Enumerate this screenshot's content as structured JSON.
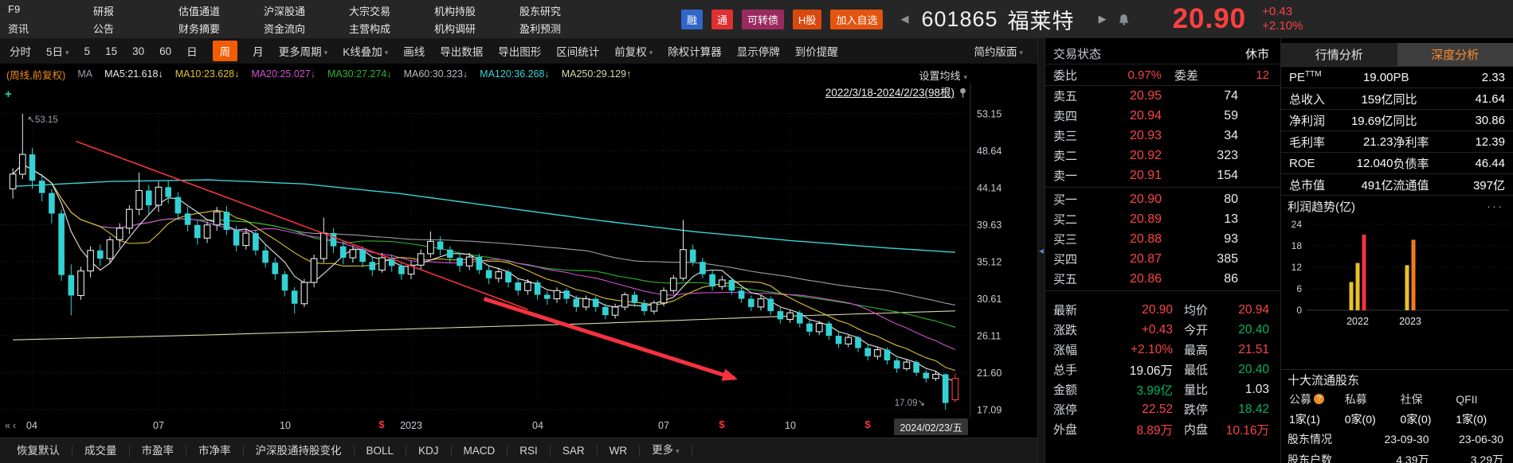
{
  "titlebar": {
    "menu_rows": [
      [
        "F9",
        "研报",
        "估值通道",
        "沪深股通",
        "大宗交易",
        "机构持股",
        "股东研究"
      ],
      [
        "资讯",
        "公告",
        "财务摘要",
        "资金流向",
        "主营构成",
        "机构调研",
        "盈利预测"
      ]
    ],
    "badges": [
      {
        "label": "融",
        "name": "margin-badge",
        "bg": "#2f66c9"
      },
      {
        "label": "通",
        "name": "connect-badge",
        "bg": "#df2f2f"
      },
      {
        "label": "可转债",
        "name": "convertible-bond-badge",
        "bg": "#992a60"
      },
      {
        "label": "H股",
        "name": "h-share-badge",
        "bg": "#d9490f"
      },
      {
        "label": "加入自选",
        "name": "add-watchlist-button",
        "bg": "#e2540f"
      }
    ],
    "collapse_arrow": "◀",
    "code": "601865",
    "name": "福莱特",
    "expand_arrow": "▶",
    "price": "20.90",
    "change": "+0.43",
    "change_pct": "+2.10%"
  },
  "toolbar": {
    "items": [
      {
        "label": "分时"
      },
      {
        "label": "5日",
        "caret": true
      },
      {
        "label": "5"
      },
      {
        "label": "15"
      },
      {
        "label": "30"
      },
      {
        "label": "60"
      },
      {
        "label": "日"
      },
      {
        "label": "周",
        "active": true
      },
      {
        "label": "月"
      },
      {
        "label": "更多周期",
        "caret": true
      },
      {
        "label": "K线叠加",
        "caret": true
      },
      {
        "label": "画线"
      },
      {
        "label": "导出数据"
      },
      {
        "label": "导出图形"
      },
      {
        "label": "区间统计"
      },
      {
        "label": "前复权",
        "caret": true
      },
      {
        "label": "除权计算器"
      },
      {
        "label": "显示停牌"
      },
      {
        "label": "到价提醒"
      }
    ],
    "right_item": "简约版面"
  },
  "ma_row": {
    "prefix": "(周线,前复权)",
    "label": "MA",
    "items": [
      {
        "t": "MA5:21.618",
        "d": "↓",
        "c": "#e8e8e8"
      },
      {
        "t": "MA10:23.628",
        "d": "↓",
        "c": "#e0c12f"
      },
      {
        "t": "MA20:25.027",
        "d": "↓",
        "c": "#d34fd3"
      },
      {
        "t": "MA30:27.274",
        "d": "↓",
        "c": "#2eb52e"
      },
      {
        "t": "MA60:30.323",
        "d": "↓",
        "c": "#b8bcc0"
      },
      {
        "t": "MA120:36.268",
        "d": "↓",
        "c": "#38d4d6"
      },
      {
        "t": "MA250:29.129",
        "d": "↑",
        "c": "#d9d9a8"
      }
    ]
  },
  "chart_header": {
    "settings": "设置均线",
    "range": "2022/3/18-2024/2/23(98根)"
  },
  "xaxis": {
    "arrows": "«‹",
    "end_label": "2024/02/23/五"
  },
  "bottom_bar": {
    "items": [
      "恢复默认",
      "成交量",
      "市盈率",
      "市净率",
      "沪深股通持股变化",
      "BOLL",
      "KDJ",
      "MACD",
      "RSI",
      "SAR",
      "WR"
    ],
    "more": "更多"
  },
  "chart_data": [
    {
      "type": "candlestick",
      "period": "weekly",
      "range_label": "2022/3/18-2024/2/23(98根)",
      "yticks": [
        53.15,
        48.64,
        44.14,
        39.63,
        35.12,
        30.61,
        26.11,
        21.6,
        17.09
      ],
      "ylim": [
        17.09,
        53.15
      ],
      "xticks": [
        {
          "label": "04",
          "week": 2
        },
        {
          "label": "07",
          "week": 15
        },
        {
          "label": "10",
          "week": 28
        },
        {
          "label": "2023",
          "week": 41
        },
        {
          "label": "04",
          "week": 54
        },
        {
          "label": "07",
          "week": 67
        },
        {
          "label": "10",
          "week": 80
        }
      ],
      "dollar_weeks": [
        38,
        73,
        88
      ],
      "annotations": {
        "high": {
          "week": 1,
          "text": "53.15"
        },
        "low": {
          "week": 96,
          "text": "17.09"
        },
        "plus": "+"
      },
      "up_color": "#e6e9ec",
      "down_color": "#33d1d4",
      "last_color": "#fb4143",
      "ma_computed": [
        {
          "n": 60,
          "c": "#9aa0a6"
        },
        {
          "n": 30,
          "c": "#2eb52e"
        },
        {
          "n": 20,
          "c": "#d34fd3"
        },
        {
          "n": 10,
          "c": "#e0c12f"
        },
        {
          "n": 5,
          "c": "#e8e8e8"
        }
      ],
      "ma_overlays": {
        "ma120": {
          "color": "#38d4d6",
          "points": [
            [
              0,
              44.3
            ],
            [
              10,
              44.9
            ],
            [
              20,
              45.1
            ],
            [
              30,
              44.6
            ],
            [
              40,
              43.4
            ],
            [
              50,
              41.8
            ],
            [
              60,
              40.2
            ],
            [
              70,
              38.8
            ],
            [
              80,
              37.7
            ],
            [
              90,
              36.8
            ],
            [
              97,
              36.27
            ]
          ]
        },
        "ma250": {
          "color": "#d9d9a8",
          "points": [
            [
              0,
              25.6
            ],
            [
              20,
              26.2
            ],
            [
              40,
              26.9
            ],
            [
              60,
              27.6
            ],
            [
              80,
              28.5
            ],
            [
              97,
              29.13
            ]
          ]
        }
      },
      "trendline": {
        "color": "#f5333f",
        "line": [
          [
            6.5,
            49.8
          ],
          [
            53,
            29.3
          ]
        ],
        "arrow": [
          [
            48.5,
            30.6
          ],
          [
            74.3,
            20.9
          ]
        ]
      },
      "candles": [
        [
          44,
          46.5,
          42.8,
          45.8
        ],
        [
          45.8,
          53.15,
          45.2,
          48.2
        ],
        [
          48.2,
          49,
          44,
          45
        ],
        [
          45,
          45.8,
          42.5,
          43.5
        ],
        [
          43.5,
          44,
          39.8,
          41
        ],
        [
          41,
          41.5,
          32.8,
          33.5
        ],
        [
          33.5,
          34.8,
          28.6,
          31
        ],
        [
          31,
          34.5,
          30.5,
          34
        ],
        [
          34,
          37,
          33.2,
          36.5
        ],
        [
          36.5,
          37.2,
          34.6,
          35.5
        ],
        [
          35.5,
          38.2,
          35,
          37.8
        ],
        [
          37.8,
          39.8,
          36.8,
          39.2
        ],
        [
          39.2,
          42,
          38.5,
          41.5
        ],
        [
          41.5,
          46,
          40.8,
          43.8
        ],
        [
          43.8,
          44.5,
          40.9,
          42
        ],
        [
          42,
          44.9,
          41.2,
          44.2
        ],
        [
          44.2,
          45,
          42.2,
          43
        ],
        [
          43,
          43.6,
          40.2,
          41
        ],
        [
          41,
          41.8,
          38.8,
          39.6
        ],
        [
          39.6,
          40.2,
          37.2,
          38
        ],
        [
          38,
          40,
          37.4,
          39.6
        ],
        [
          39.6,
          41.8,
          38.9,
          41.2
        ],
        [
          41.2,
          41.9,
          38.4,
          39
        ],
        [
          39,
          39.5,
          36.4,
          37.1
        ],
        [
          37.1,
          39.2,
          36.6,
          38.6
        ],
        [
          38.6,
          39,
          35.9,
          36.5
        ],
        [
          36.5,
          37.2,
          34.4,
          35
        ],
        [
          35,
          35.6,
          32.9,
          33.6
        ],
        [
          33.6,
          34,
          30.9,
          31.6
        ],
        [
          31.6,
          32,
          28.8,
          30
        ],
        [
          30,
          33,
          29.6,
          32.6
        ],
        [
          32.6,
          36,
          32,
          35.5
        ],
        [
          35.5,
          40.5,
          35,
          38.6
        ],
        [
          38.6,
          39.2,
          36.2,
          37
        ],
        [
          37,
          37.6,
          34.8,
          35.6
        ],
        [
          35.6,
          37.1,
          35,
          36.6
        ],
        [
          36.6,
          37,
          34.4,
          35.1
        ],
        [
          35.1,
          35.8,
          33.4,
          34.1
        ],
        [
          34.1,
          36.2,
          33.8,
          35.6
        ],
        [
          35.6,
          36,
          33.9,
          34.6
        ],
        [
          34.6,
          35,
          32.9,
          33.6
        ],
        [
          33.6,
          35.2,
          33,
          34.7
        ],
        [
          34.7,
          36.6,
          34.2,
          36.1
        ],
        [
          36.1,
          38.8,
          35.6,
          37.6
        ],
        [
          37.6,
          38.2,
          35.9,
          36.6
        ],
        [
          36.6,
          37,
          35,
          35.6
        ],
        [
          35.6,
          36.1,
          33.9,
          34.6
        ],
        [
          34.6,
          36.2,
          34.1,
          35.7
        ],
        [
          35.7,
          36.1,
          33.6,
          34.1
        ],
        [
          34.1,
          34.6,
          32.4,
          33.1
        ],
        [
          33.1,
          34.4,
          32.6,
          33.9
        ],
        [
          33.9,
          34.2,
          32,
          32.6
        ],
        [
          32.6,
          33,
          31,
          31.6
        ],
        [
          31.6,
          33,
          31.1,
          32.6
        ],
        [
          32.6,
          32.9,
          30.5,
          31.1
        ],
        [
          31.1,
          31.5,
          29.9,
          30.6
        ],
        [
          30.6,
          32,
          30.1,
          31.6
        ],
        [
          31.6,
          31.9,
          30,
          30.6
        ],
        [
          30.6,
          31,
          29,
          29.6
        ],
        [
          29.6,
          31,
          29.2,
          30.6
        ],
        [
          30.6,
          30.9,
          29,
          29.6
        ],
        [
          29.6,
          30,
          28.1,
          28.6
        ],
        [
          28.6,
          30,
          28.2,
          29.6
        ],
        [
          29.6,
          31.4,
          29.2,
          31.1
        ],
        [
          31.1,
          31.5,
          29.6,
          30.1
        ],
        [
          30.1,
          30.5,
          28.6,
          29.1
        ],
        [
          29.1,
          30.4,
          28.7,
          30.1
        ],
        [
          30.1,
          32,
          29.7,
          31.6
        ],
        [
          31.6,
          33.5,
          31.2,
          33.1
        ],
        [
          33.1,
          40.2,
          32.8,
          36.6
        ],
        [
          36.6,
          37.2,
          34.6,
          35.1
        ],
        [
          35.1,
          35.6,
          33.1,
          33.6
        ],
        [
          33.6,
          34.1,
          31.6,
          32.1
        ],
        [
          32.1,
          33.4,
          31.7,
          32.9
        ],
        [
          32.9,
          33.2,
          31.1,
          31.6
        ],
        [
          31.6,
          32,
          30.1,
          30.6
        ],
        [
          30.6,
          31,
          29.1,
          29.6
        ],
        [
          29.6,
          31,
          29.2,
          30.6
        ],
        [
          30.6,
          30.9,
          28.6,
          29.1
        ],
        [
          29.1,
          29.5,
          27.6,
          28.1
        ],
        [
          28.1,
          29.2,
          27.7,
          28.9
        ],
        [
          28.9,
          29.2,
          27.1,
          27.6
        ],
        [
          27.6,
          28,
          26.1,
          26.6
        ],
        [
          26.6,
          27.9,
          26.2,
          27.6
        ],
        [
          27.6,
          27.9,
          25.6,
          26.1
        ],
        [
          26.1,
          26.5,
          24.6,
          25.1
        ],
        [
          25.1,
          26.2,
          24.7,
          25.9
        ],
        [
          25.9,
          26.1,
          24.1,
          24.6
        ],
        [
          24.6,
          25,
          23.1,
          23.6
        ],
        [
          23.6,
          24.7,
          23.2,
          24.4
        ],
        [
          24.4,
          24.7,
          22.6,
          23.1
        ],
        [
          23.1,
          23.4,
          21.6,
          22.1
        ],
        [
          22.1,
          23.2,
          21.8,
          22.9
        ],
        [
          22.9,
          23.1,
          21.2,
          21.6
        ],
        [
          21.6,
          21.9,
          20.4,
          20.9
        ],
        [
          20.9,
          21.8,
          20.6,
          21.4
        ],
        [
          21.4,
          21.5,
          17.09,
          17.9
        ],
        [
          18.3,
          21.51,
          18,
          20.9
        ]
      ]
    },
    {
      "type": "bar",
      "title": "利润趋势(亿)",
      "yticks": [
        24,
        18,
        12,
        6,
        0
      ],
      "ylim": [
        0,
        26
      ],
      "categories": [
        "2022",
        "2023"
      ],
      "groups": [
        {
          "label": "2022",
          "bars": [
            {
              "value": 7.9,
              "color": "#e6c22d"
            },
            {
              "value": 13.2,
              "color": "#e6c22d"
            },
            {
              "value": 21.1,
              "color": "#f5333f"
            }
          ]
        },
        {
          "label": "2023",
          "bars": [
            {
              "value": 12.6,
              "color": "#e6c22d"
            },
            {
              "value": 19.7,
              "color": "#f07a1e"
            }
          ]
        }
      ]
    }
  ],
  "quote": {
    "header": {
      "label": "交易状态",
      "value": "休市"
    },
    "weibi": {
      "label": "委比",
      "value": "0.97%",
      "label2": "委差",
      "value2": "12"
    },
    "sells": [
      [
        "卖五",
        "20.95",
        "74"
      ],
      [
        "卖四",
        "20.94",
        "59"
      ],
      [
        "卖三",
        "20.93",
        "34"
      ],
      [
        "卖二",
        "20.92",
        "323"
      ],
      [
        "卖一",
        "20.91",
        "154"
      ]
    ],
    "buys": [
      [
        "买一",
        "20.90",
        "80"
      ],
      [
        "买二",
        "20.89",
        "13"
      ],
      [
        "买三",
        "20.88",
        "93"
      ],
      [
        "买四",
        "20.87",
        "385"
      ],
      [
        "买五",
        "20.86",
        "86"
      ]
    ],
    "details": [
      [
        {
          "l": "最新",
          "v": "20.90",
          "c": "red"
        },
        {
          "l": "均价",
          "v": "20.94",
          "c": "red"
        }
      ],
      [
        {
          "l": "涨跌",
          "v": "+0.43",
          "c": "red"
        },
        {
          "l": "今开",
          "v": "20.40",
          "c": "green"
        }
      ],
      [
        {
          "l": "涨幅",
          "v": "+2.10%",
          "c": "red"
        },
        {
          "l": "最高",
          "v": "21.51",
          "c": "red"
        }
      ],
      [
        {
          "l": "总手",
          "v": "19.06万",
          "c": "white"
        },
        {
          "l": "最低",
          "v": "20.40",
          "c": "green"
        }
      ],
      [
        {
          "l": "金额",
          "v": "3.99亿",
          "c": "green"
        },
        {
          "l": "量比",
          "v": "1.03",
          "c": "white"
        }
      ],
      [
        {
          "l": "涨停",
          "v": "22.52",
          "c": "red"
        },
        {
          "l": "跌停",
          "v": "18.42",
          "c": "green"
        }
      ],
      [
        {
          "l": "外盘",
          "v": "8.89万",
          "c": "red"
        },
        {
          "l": "内盘",
          "v": "10.16万",
          "c": "red"
        }
      ]
    ]
  },
  "right": {
    "tabs": [
      {
        "label": "行情分析",
        "name": "tab-quote-analysis",
        "active": false
      },
      {
        "label": "深度分析",
        "name": "tab-depth-analysis",
        "active": true
      }
    ],
    "stats": [
      [
        {
          "l": "PE",
          "sup": "TTM",
          "v": "19.00"
        },
        {
          "l": "PB",
          "v": "2.33"
        }
      ],
      [
        {
          "l": "总收入",
          "v": "159亿"
        },
        {
          "l": "同比",
          "v": "41.64"
        }
      ],
      [
        {
          "l": "净利润",
          "v": "19.69亿"
        },
        {
          "l": "同比",
          "v": "30.86"
        }
      ],
      [
        {
          "l": "毛利率",
          "v": "21.23"
        },
        {
          "l": "净利率",
          "v": "12.39"
        }
      ],
      [
        {
          "l": "ROE",
          "v": "12.040"
        },
        {
          "l": "负债率",
          "v": "46.44"
        }
      ],
      [
        {
          "l": "总市值",
          "v": "491亿"
        },
        {
          "l": "流通值",
          "v": "397亿"
        }
      ]
    ],
    "profit_title": "利润趋势(亿)",
    "ellipsis": "···",
    "holders": {
      "title": "十大流通股东",
      "cols": [
        "公募",
        "私募",
        "社保",
        "QFII"
      ],
      "vals": [
        "1家(1)",
        "0家(0)",
        "0家(0)",
        "1家(0)"
      ],
      "rows": [
        [
          "股东情况",
          "23-09-30",
          "23-06-30"
        ],
        [
          "股东户数",
          "4.39万",
          "3.29万"
        ]
      ]
    }
  }
}
